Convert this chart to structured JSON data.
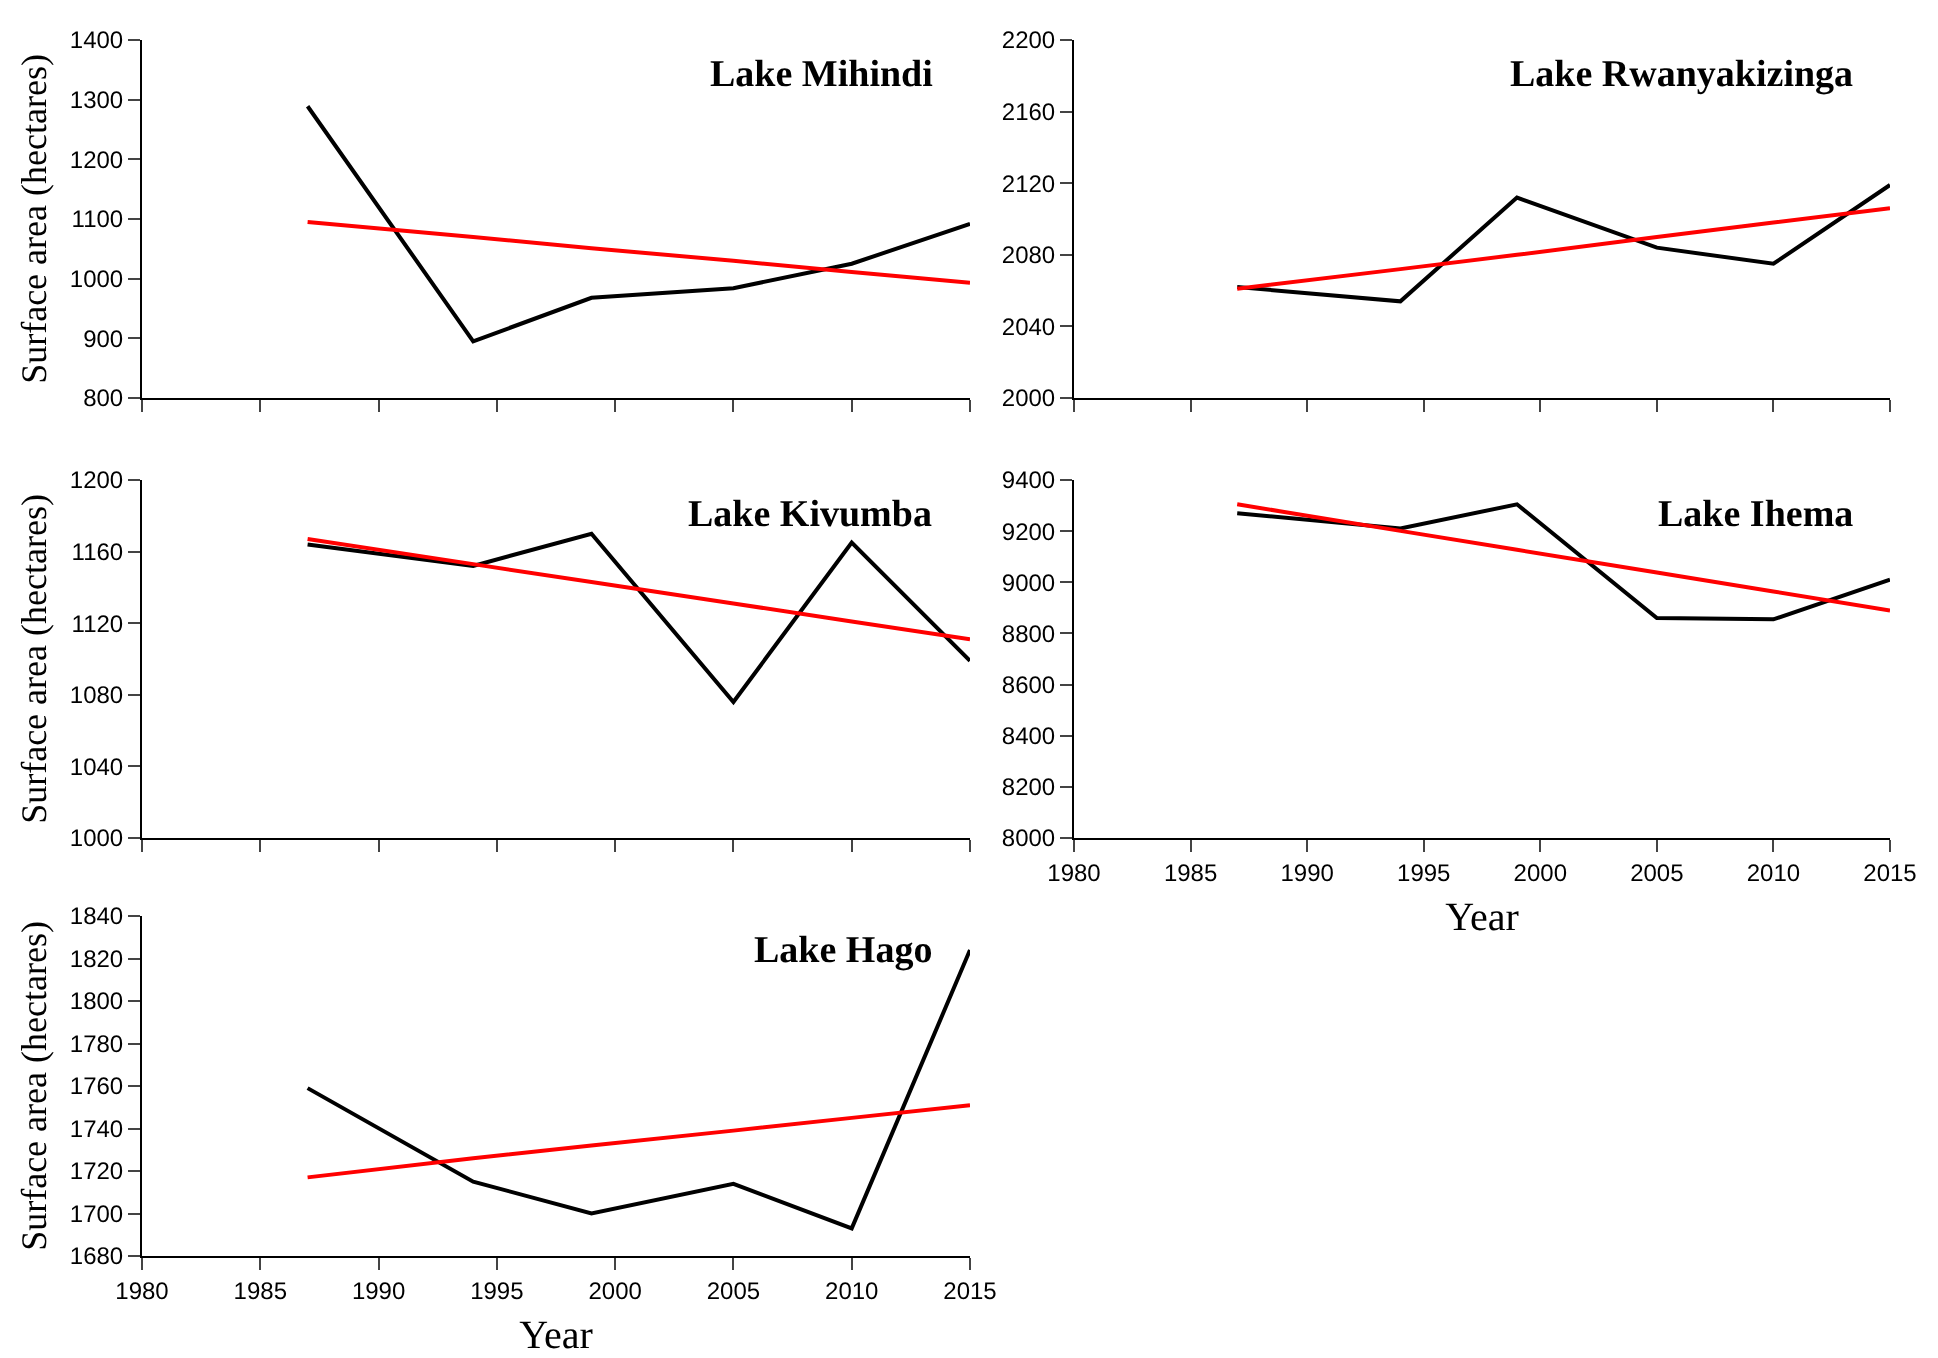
{
  "chart_data": [
    {
      "type": "line",
      "title": "Lake Mihindi",
      "ylabel": "Surface area (hectares)",
      "x": [
        1987,
        1994,
        1999,
        2005,
        2010,
        2015
      ],
      "xlim": [
        1980,
        2015
      ],
      "xticks": [
        1980,
        1985,
        1990,
        1995,
        2000,
        2005,
        2010,
        2015
      ],
      "ylim": [
        800,
        1400
      ],
      "yticks": [
        800,
        900,
        1000,
        1100,
        1200,
        1300,
        1400
      ],
      "tick_labels": "y",
      "series": [
        {
          "color": "#000000",
          "values": [
            1289,
            895,
            968,
            984,
            1025,
            1092
          ]
        },
        {
          "type": "line",
          "color": "#ff0000",
          "values": [
            1095,
            1070,
            1051,
            1030,
            1011,
            993
          ]
        }
      ]
    },
    {
      "type": "line",
      "title": "Lake Rwanyakizinga",
      "x": [
        1987,
        1994,
        1999,
        2005,
        2010,
        2015
      ],
      "xlim": [
        1980,
        2015
      ],
      "xticks": [
        1980,
        1985,
        1990,
        1995,
        2000,
        2005,
        2010,
        2015
      ],
      "ylim": [
        2000,
        2200
      ],
      "yticks": [
        2000,
        2040,
        2080,
        2120,
        2160,
        2200
      ],
      "tick_labels": "y",
      "series": [
        {
          "color": "#000000",
          "values": [
            2062,
            2054,
            2112,
            2084,
            2075,
            2119
          ]
        },
        {
          "type": "line",
          "color": "#ff0000",
          "values": [
            2061,
            2072,
            2080,
            2090,
            2098,
            2106
          ]
        }
      ]
    },
    {
      "type": "line",
      "title": "Lake Kivumba",
      "ylabel": "Surface area (hectares)",
      "x": [
        1987,
        1994,
        1999,
        2005,
        2010,
        2015
      ],
      "xlim": [
        1980,
        2015
      ],
      "xticks": [
        1980,
        1985,
        1990,
        1995,
        2000,
        2005,
        2010,
        2015
      ],
      "ylim": [
        1000,
        1200
      ],
      "yticks": [
        1000,
        1040,
        1080,
        1120,
        1160,
        1200
      ],
      "tick_labels": "y",
      "series": [
        {
          "color": "#000000",
          "values": [
            1164,
            1152,
            1170,
            1076,
            1165,
            1099
          ]
        },
        {
          "type": "line",
          "color": "#ff0000",
          "values": [
            1167,
            1153,
            1143,
            1131,
            1121,
            1111
          ]
        }
      ]
    },
    {
      "type": "line",
      "title": "Lake Ihema",
      "xlabel": "Year",
      "x": [
        1987,
        1994,
        1999,
        2005,
        2010,
        2015
      ],
      "xlim": [
        1980,
        2015
      ],
      "xticks": [
        1980,
        1985,
        1990,
        1995,
        2000,
        2005,
        2010,
        2015
      ],
      "ylim": [
        8000,
        9400
      ],
      "yticks": [
        8000,
        8200,
        8400,
        8600,
        8800,
        9000,
        9200,
        9400
      ],
      "series": [
        {
          "color": "#000000",
          "values": [
            9270,
            9210,
            9305,
            8860,
            8855,
            9010
          ]
        },
        {
          "type": "line",
          "color": "#ff0000",
          "values": [
            9305,
            9201,
            9127,
            9038,
            8964,
            8890
          ]
        }
      ]
    },
    {
      "type": "line",
      "title": "Lake Hago",
      "xlabel": "Year",
      "ylabel": "Surface area (hectares)",
      "x": [
        1987,
        1994,
        1999,
        2005,
        2010,
        2015
      ],
      "xlim": [
        1980,
        2015
      ],
      "xticks": [
        1980,
        1985,
        1990,
        1995,
        2000,
        2005,
        2010,
        2015
      ],
      "ylim": [
        1680,
        1840
      ],
      "yticks": [
        1680,
        1700,
        1720,
        1740,
        1760,
        1780,
        1800,
        1820,
        1840
      ],
      "series": [
        {
          "color": "#000000",
          "values": [
            1759,
            1715,
            1700,
            1714,
            1693,
            1824
          ]
        },
        {
          "type": "line",
          "color": "#ff0000",
          "values": [
            1717,
            1726,
            1732,
            1739,
            1745,
            1751
          ]
        }
      ]
    }
  ]
}
